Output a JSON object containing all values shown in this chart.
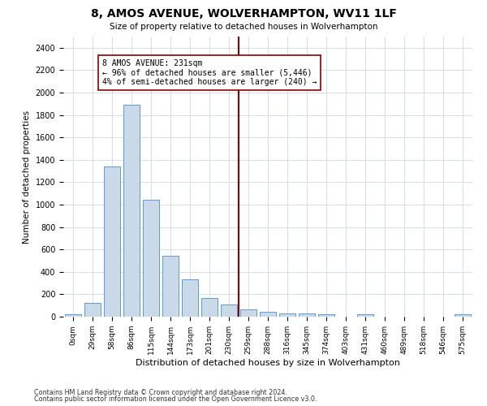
{
  "title": "8, AMOS AVENUE, WOLVERHAMPTON, WV11 1LF",
  "subtitle": "Size of property relative to detached houses in Wolverhampton",
  "xlabel": "Distribution of detached houses by size in Wolverhampton",
  "ylabel": "Number of detached properties",
  "bar_labels": [
    "0sqm",
    "29sqm",
    "58sqm",
    "86sqm",
    "115sqm",
    "144sqm",
    "173sqm",
    "201sqm",
    "230sqm",
    "259sqm",
    "288sqm",
    "316sqm",
    "345sqm",
    "374sqm",
    "403sqm",
    "431sqm",
    "460sqm",
    "489sqm",
    "518sqm",
    "546sqm",
    "575sqm"
  ],
  "bar_values": [
    20,
    125,
    1340,
    1890,
    1045,
    540,
    335,
    170,
    110,
    65,
    40,
    30,
    28,
    20,
    0,
    25,
    0,
    0,
    0,
    0,
    20
  ],
  "bar_color": "#c9d9e8",
  "bar_edge_color": "#5b9bd5",
  "vline_x": 8.5,
  "vline_color": "#8b0000",
  "annotation_text": "8 AMOS AVENUE: 231sqm\n← 96% of detached houses are smaller (5,446)\n4% of semi-detached houses are larger (240) →",
  "annotation_box_color": "#ffffff",
  "annotation_box_edge_color": "#8b0000",
  "ylim": [
    0,
    2500
  ],
  "yticks": [
    0,
    200,
    400,
    600,
    800,
    1000,
    1200,
    1400,
    1600,
    1800,
    2000,
    2200,
    2400
  ],
  "footer_line1": "Contains HM Land Registry data © Crown copyright and database right 2024.",
  "footer_line2": "Contains public sector information licensed under the Open Government Licence v3.0.",
  "background_color": "#ffffff",
  "grid_color": "#d0d8e8"
}
